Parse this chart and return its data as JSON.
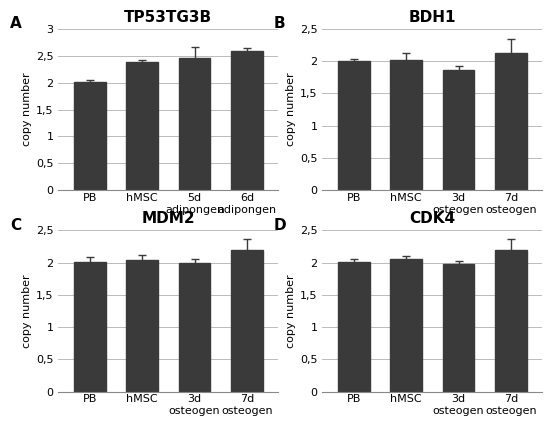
{
  "panels": [
    {
      "label": "A",
      "title": "TP53TG3B",
      "tick_labels": [
        "PB",
        "hMSC",
        "5d\nadipongen",
        "6d\nadipongen"
      ],
      "values": [
        2.01,
        2.38,
        2.46,
        2.58
      ],
      "errors": [
        0.04,
        0.04,
        0.2,
        0.06
      ],
      "ylim": [
        0,
        3
      ],
      "yticks": [
        0,
        0.5,
        1,
        1.5,
        2,
        2.5,
        3
      ],
      "ytick_labels": [
        "0",
        "0,5",
        "1",
        "1,5",
        "2",
        "2,5",
        "3"
      ]
    },
    {
      "label": "B",
      "title": "BDH1",
      "tick_labels": [
        "PB",
        "hMSC",
        "3d\nosteogen",
        "7d\nosteogen"
      ],
      "values": [
        2.01,
        2.02,
        1.87,
        2.12
      ],
      "errors": [
        0.03,
        0.1,
        0.06,
        0.22
      ],
      "ylim": [
        0,
        2.5
      ],
      "yticks": [
        0,
        0.5,
        1,
        1.5,
        2,
        2.5
      ],
      "ytick_labels": [
        "0",
        "0,5",
        "1",
        "1,5",
        "2",
        "2,5"
      ]
    },
    {
      "label": "C",
      "title": "MDM2",
      "tick_labels": [
        "PB",
        "hMSC",
        "3d\nosteogen",
        "7d\nosteogen"
      ],
      "values": [
        2.01,
        2.04,
        1.99,
        2.19
      ],
      "errors": [
        0.08,
        0.08,
        0.06,
        0.18
      ],
      "ylim": [
        0,
        2.5
      ],
      "yticks": [
        0,
        0.5,
        1,
        1.5,
        2,
        2.5
      ],
      "ytick_labels": [
        "0",
        "0,5",
        "1",
        "1,5",
        "2",
        "2,5"
      ]
    },
    {
      "label": "D",
      "title": "CDK4",
      "tick_labels": [
        "PB",
        "hMSC",
        "3d\nosteogen",
        "7d\nosteogen"
      ],
      "values": [
        2.01,
        2.05,
        1.98,
        2.2
      ],
      "errors": [
        0.04,
        0.06,
        0.05,
        0.16
      ],
      "ylim": [
        0,
        2.5
      ],
      "yticks": [
        0,
        0.5,
        1,
        1.5,
        2,
        2.5
      ],
      "ytick_labels": [
        "0",
        "0,5",
        "1",
        "1,5",
        "2",
        "2,5"
      ]
    }
  ],
  "bar_color": "#3a3a3a",
  "bar_edgecolor": "#3a3a3a",
  "error_color": "#3a3a3a",
  "bg_color": "#ffffff",
  "ylabel": "copy number",
  "title_fontsize": 11,
  "panel_label_fontsize": 11,
  "tick_fontsize": 8,
  "ylabel_fontsize": 8
}
